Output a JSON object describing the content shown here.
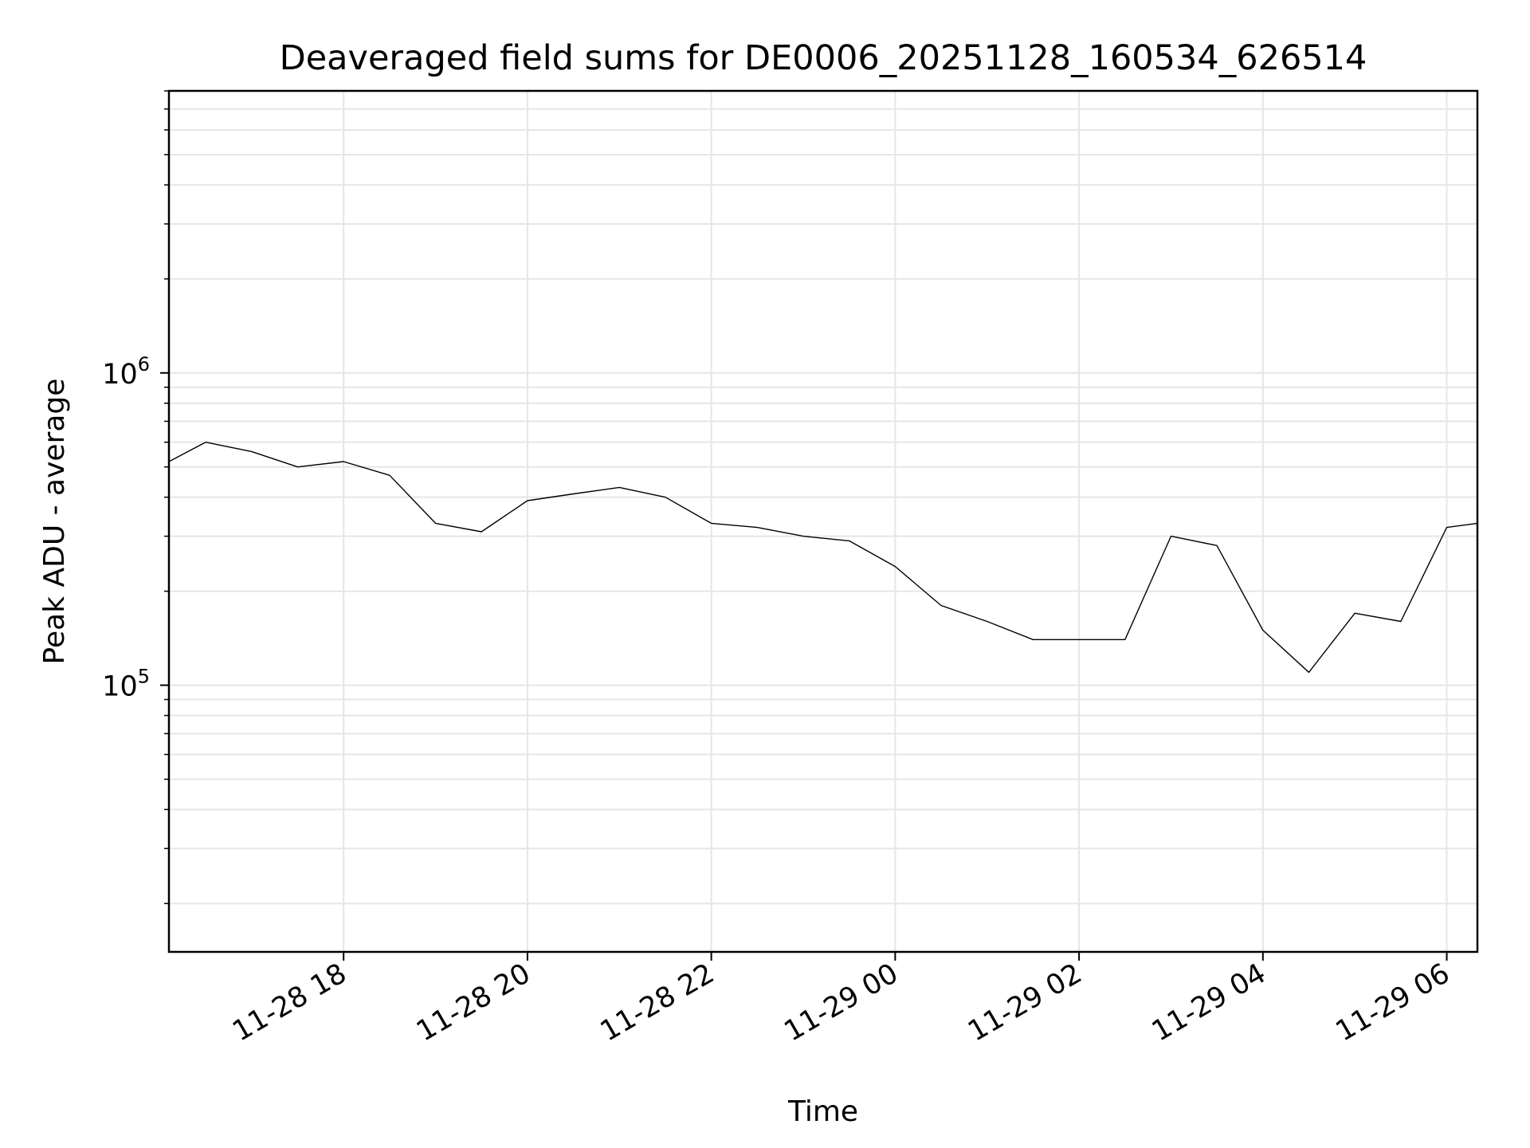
{
  "chart_data": {
    "type": "line",
    "title": "Deaveraged field sums for DE0006_20251128_160534_626514",
    "xlabel": "Time",
    "ylabel": "Peak ADU - average",
    "yscale": "log",
    "ylim": [
      14000,
      8000000
    ],
    "xlim": [
      "11-28 16:06",
      "11-29 06:20"
    ],
    "grid": true,
    "line_color": "#000000",
    "x_ticks": [
      "11-28 18",
      "11-28 20",
      "11-28 22",
      "11-29 00",
      "11-29 02",
      "11-29 04",
      "11-29 06"
    ],
    "y_ticks": [
      {
        "base": "10",
        "exp": "5",
        "value": 100000
      },
      {
        "base": "10",
        "exp": "6",
        "value": 1000000
      }
    ],
    "series": [
      {
        "x": [
          "11-28 16:06",
          "11-28 16:30",
          "11-28 17:00",
          "11-28 17:30",
          "11-28 18:00",
          "11-28 18:30",
          "11-28 19:00",
          "11-28 19:30",
          "11-28 20:00",
          "11-28 20:30",
          "11-28 21:00",
          "11-28 21:30",
          "11-28 22:00",
          "11-28 22:30",
          "11-28 23:00",
          "11-28 23:30",
          "11-29 00:00",
          "11-29 00:30",
          "11-29 01:00",
          "11-29 01:30",
          "11-29 02:00",
          "11-29 02:30",
          "11-29 03:00",
          "11-29 03:30",
          "11-29 04:00",
          "11-29 04:30",
          "11-29 05:00",
          "11-29 05:30",
          "11-29 06:00",
          "11-29 06:20"
        ],
        "y": [
          520000,
          600000,
          560000,
          500000,
          520000,
          470000,
          330000,
          310000,
          390000,
          410000,
          430000,
          400000,
          330000,
          320000,
          300000,
          290000,
          240000,
          180000,
          160000,
          140000,
          140000,
          140000,
          300000,
          280000,
          150000,
          110000,
          170000,
          160000,
          320000,
          330000
        ]
      }
    ]
  }
}
